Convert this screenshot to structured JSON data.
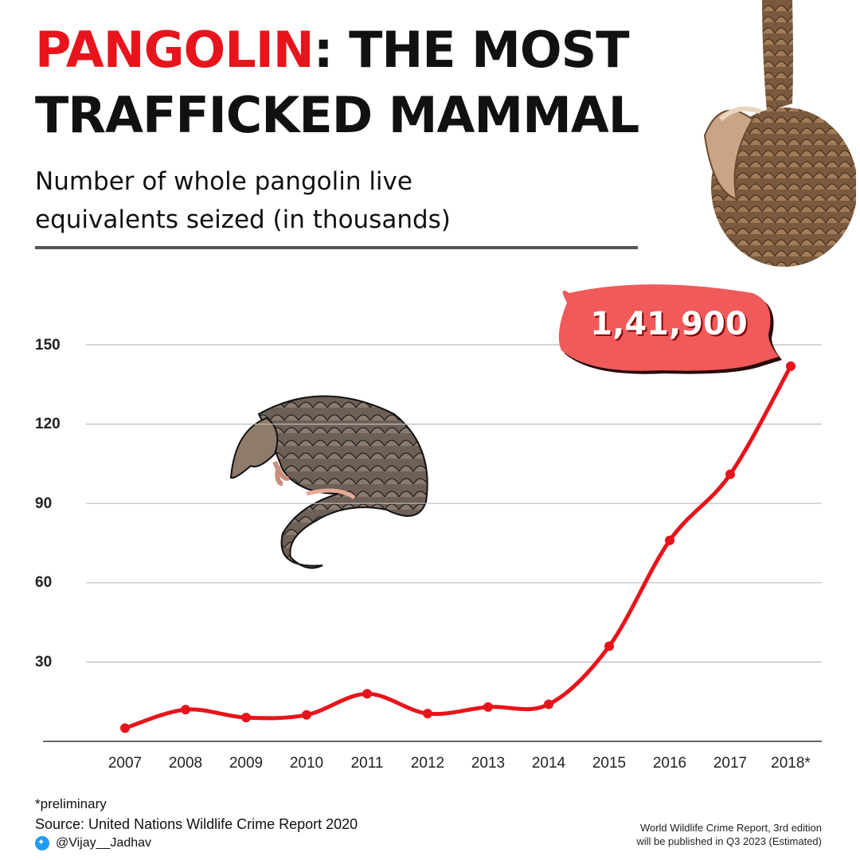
{
  "header": {
    "title_accent": "PANGOLIN",
    "title_rest": ": THE MOST TRAFFICKED MAMMAL",
    "subtitle": "Number of whole pangolin live equivalents seized (in thousands)"
  },
  "callout": {
    "label": "1,41,900",
    "color": "#f05a5a"
  },
  "footer": {
    "footnote": "*preliminary",
    "source": "Source: United Nations Wildlife Crime Report 2020",
    "handle": "@Vijay__Jadhav",
    "note_line1": "World Wildlife Crime Report, 3rd edition",
    "note_line2": "will be published in Q3 2023 (Estimated)"
  },
  "icons": [
    "pangolin-photo",
    "pangolin-illustration",
    "twitter-icon"
  ],
  "colors": {
    "accent": "#e8141b",
    "line": "#e8141b",
    "grid": "#bdbdbd"
  },
  "chart_data": {
    "type": "line",
    "categories": [
      "2007",
      "2008",
      "2009",
      "2010",
      "2011",
      "2012",
      "2013",
      "2014",
      "2015",
      "2016",
      "2017",
      "2018*"
    ],
    "series": [
      {
        "values": [
          5,
          12,
          9,
          10,
          18,
          10.5,
          13,
          14,
          36,
          76,
          101,
          141.9
        ]
      }
    ],
    "yticks": [
      30,
      60,
      90,
      120,
      150
    ],
    "ylim": [
      0,
      160
    ],
    "grid": true,
    "xlabel": "",
    "ylabel": ""
  }
}
